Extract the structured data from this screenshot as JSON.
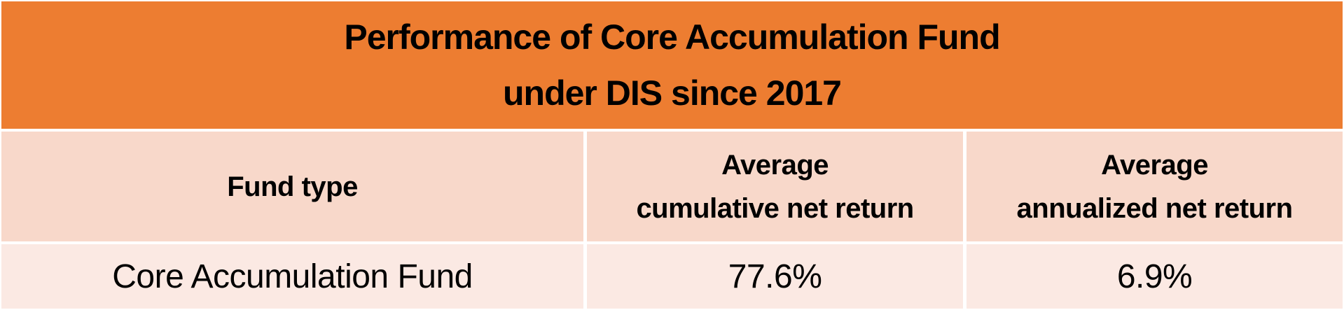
{
  "title": {
    "line1": "Performance of Core Accumulation Fund",
    "line2": "under DIS since 2017"
  },
  "header_row": {
    "fund_type": "Fund type",
    "cumulative": {
      "line1": "Average",
      "line2": "cumulative net return"
    },
    "annualized": {
      "line1": "Average",
      "line2": "annualized net return"
    }
  },
  "data_row": {
    "fund_name": "Core Accumulation Fund",
    "cumulative_return": "77.6%",
    "annualized_return": "6.9%"
  },
  "colors": {
    "title_band": "#ED7D31",
    "header_row_bg": "#F8D8CA",
    "data_row_bg": "#FBE9E3",
    "divider": "#FFFFFF",
    "text": "#000000"
  },
  "chart_data": {
    "type": "table",
    "title": "Performance of Core Accumulation Fund under DIS since 2017",
    "columns": [
      "Fund type",
      "Average cumulative net return",
      "Average annualized net return"
    ],
    "rows": [
      [
        "Core Accumulation Fund",
        "77.6%",
        "6.9%"
      ]
    ]
  }
}
